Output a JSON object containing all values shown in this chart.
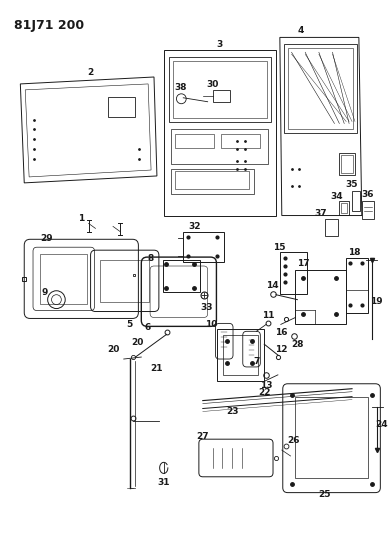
{
  "title": "81J71 200",
  "bg_color": "#ffffff",
  "line_color": "#1a1a1a",
  "title_fontsize": 9,
  "label_fontsize": 6.5,
  "figsize": [
    3.91,
    5.33
  ],
  "dpi": 100
}
